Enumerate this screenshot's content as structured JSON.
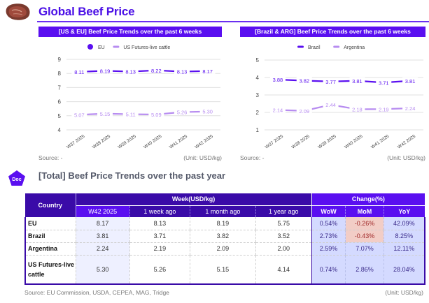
{
  "header": {
    "title": "Global Beef Price",
    "logo_icon": "beef-steak-icon"
  },
  "charts": [
    {
      "title": "[US & EU] Beef Price Trends over the past 6 weeks",
      "source": "Source: -",
      "unit": "(Unit: USD/kg)",
      "chart_data": {
        "type": "line",
        "title": "[US & EU] Beef Price Trends over the past 6 weeks",
        "categories": [
          "W37 2025",
          "W38 2025",
          "W39 2025",
          "W40 2025",
          "W41 2025",
          "W42 2025"
        ],
        "ylim": [
          4,
          9
        ],
        "yticks": [
          4,
          5,
          6,
          7,
          8,
          9
        ],
        "grid": true,
        "legend": "top-center",
        "series": [
          {
            "name": "EU",
            "color": "#5a0ff0",
            "marker": "circle",
            "values": [
              8.11,
              8.19,
              8.13,
              8.22,
              8.13,
              8.17
            ],
            "labels": [
              "8.11",
              "8.19",
              "8.13",
              "8.22",
              "8.13",
              "8.17"
            ]
          },
          {
            "name": "US Futures-live cattle",
            "color": "#b78cf0",
            "marker": "line",
            "values": [
              5.07,
              5.15,
              5.11,
              5.09,
              5.26,
              5.3
            ],
            "labels": [
              "5.07",
              "5.15",
              "5.11",
              "5.09",
              "5.26",
              "5.30"
            ]
          }
        ]
      }
    },
    {
      "title": "[Brazil & ARG] Beef Price Trends over the past 6 weeks",
      "source": "Source: -",
      "unit": "(Unit: USD/kg)",
      "chart_data": {
        "type": "line",
        "title": "[Brazil & ARG] Beef Price Trends over the past 6 weeks",
        "categories": [
          "W37 2025",
          "W38 2025",
          "W39 2025",
          "W40 2025",
          "W41 2025",
          "W42 2025"
        ],
        "ylim": [
          1,
          5
        ],
        "yticks": [
          1,
          2,
          3,
          4,
          5
        ],
        "grid": true,
        "legend": "top-center",
        "series": [
          {
            "name": "Brazil",
            "color": "#5a0ff0",
            "marker": "line",
            "values": [
              3.88,
              3.82,
              3.77,
              3.81,
              3.71,
              3.81
            ],
            "labels": [
              "3.88",
              "3.82",
              "3.77",
              "3.81",
              "3.71",
              "3.81"
            ]
          },
          {
            "name": "Argentina",
            "color": "#b78cf0",
            "marker": "line",
            "values": [
              2.14,
              2.09,
              2.44,
              2.18,
              2.19,
              2.24
            ],
            "labels": [
              "2.14",
              "2.09",
              "2.44",
              "2.18",
              "2.19",
              "2.24"
            ]
          }
        ]
      }
    }
  ],
  "section": {
    "badge": "Doc",
    "title": "[Total] Beef Price Trends over the past year"
  },
  "table": {
    "country_header": "Country",
    "week_group": "Week(USD/kg)",
    "change_group": "Change(%)",
    "week_columns": [
      "W42 2025",
      "1 week ago",
      "1 month ago",
      "1 year ago"
    ],
    "change_columns": [
      "WoW",
      "MoM",
      "YoY"
    ],
    "rows": [
      {
        "country": "EU",
        "week": [
          "8.17",
          "8.13",
          "8.19",
          "5.75"
        ],
        "change": [
          "0.54%",
          "-0.26%",
          "42.09%"
        ]
      },
      {
        "country": "Brazil",
        "week": [
          "3.81",
          "3.71",
          "3.82",
          "3.52"
        ],
        "change": [
          "2.73%",
          "-0.43%",
          "8.25%"
        ]
      },
      {
        "country": "Argentina",
        "week": [
          "2.24",
          "2.19",
          "2.09",
          "2.00"
        ],
        "change": [
          "2.59%",
          "7.07%",
          "12.11%"
        ]
      },
      {
        "country": "US Futures-live cattle",
        "week": [
          "5.30",
          "5.26",
          "5.15",
          "4.14"
        ],
        "change": [
          "0.74%",
          "2.86%",
          "28.04%"
        ]
      }
    ],
    "source": "Source: EU Commission, USDA, CEPEA, MAG, Tridge",
    "unit": "(Unit: USD/kg)"
  },
  "colors": {
    "brand": "#5a0ff0",
    "header_dark": "#3a0ba8",
    "series_light": "#b78cf0",
    "change_bg": "#d4daff",
    "negative_bg": "#f2cdc6"
  }
}
